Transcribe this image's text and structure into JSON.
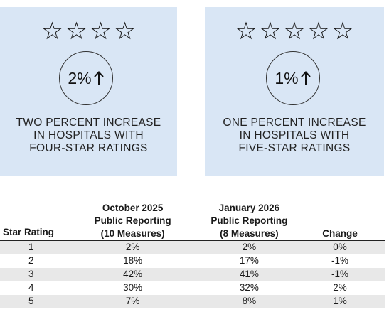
{
  "cards": [
    {
      "stars": "☆☆☆☆",
      "percent": "2%",
      "direction": "up-arrow-icon",
      "lines": [
        "TWO PERCENT INCREASE",
        "IN HOSPITALS WITH",
        "FOUR-STAR RATINGS"
      ]
    },
    {
      "stars": "☆☆☆☆☆",
      "percent": "1%",
      "direction": "up-arrow-icon",
      "lines": [
        "ONE PERCENT INCREASE",
        "IN HOSPITALS WITH",
        "FIVE-STAR RATINGS"
      ]
    }
  ],
  "table": {
    "headers": {
      "rating": "Star Rating",
      "oct": [
        "October 2025",
        "Public Reporting",
        "(10 Measures)"
      ],
      "jan": [
        "January 2026",
        "Public Reporting",
        "(8 Measures)"
      ],
      "change": "Change"
    },
    "rows": [
      {
        "rating": "1",
        "oct": "2%",
        "jan": "2%",
        "change": "0%"
      },
      {
        "rating": "2",
        "oct": "18%",
        "jan": "17%",
        "change": "-1%"
      },
      {
        "rating": "3",
        "oct": "42%",
        "jan": "41%",
        "change": "-1%"
      },
      {
        "rating": "4",
        "oct": "30%",
        "jan": "32%",
        "change": "2%"
      },
      {
        "rating": "5",
        "oct": "7%",
        "jan": "8%",
        "change": "1%"
      }
    ]
  },
  "colors": {
    "card_bg": "#d9e6f5",
    "row_shade": "#e8e8e8"
  }
}
